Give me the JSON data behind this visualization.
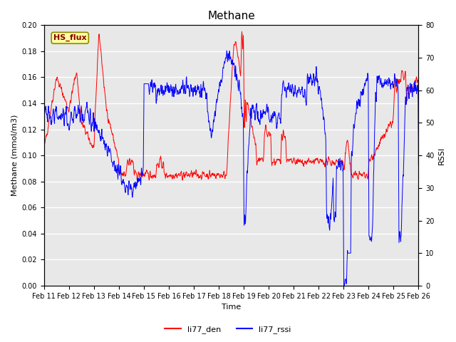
{
  "title": "Methane",
  "ylabel_left": "Methane (mmol/m3)",
  "ylabel_right": "RSSI",
  "xlabel": "Time",
  "ylim_left": [
    0.0,
    0.2
  ],
  "ylim_right": [
    0,
    80
  ],
  "yticks_left": [
    0.0,
    0.02,
    0.04,
    0.06,
    0.08,
    0.1,
    0.12,
    0.14,
    0.16,
    0.18,
    0.2
  ],
  "yticks_right": [
    0,
    10,
    20,
    30,
    40,
    50,
    60,
    70,
    80
  ],
  "xtick_labels": [
    "Feb 11",
    "Feb 12",
    "Feb 13",
    "Feb 14",
    "Feb 15",
    "Feb 16",
    "Feb 17",
    "Feb 18",
    "Feb 19",
    "Feb 20",
    "Feb 21",
    "Feb 22",
    "Feb 23",
    "Feb 24",
    "Feb 25",
    "Feb 26"
  ],
  "color_red": "#FF0000",
  "color_blue": "#0000FF",
  "legend_entries": [
    "li77_den",
    "li77_rssi"
  ],
  "annotation_text": "HS_flux",
  "background_color": "#E8E8E8",
  "fig_background": "#FFFFFF",
  "title_fontsize": 11,
  "axis_label_fontsize": 8,
  "tick_fontsize": 7,
  "legend_fontsize": 8,
  "annotation_fontsize": 8
}
